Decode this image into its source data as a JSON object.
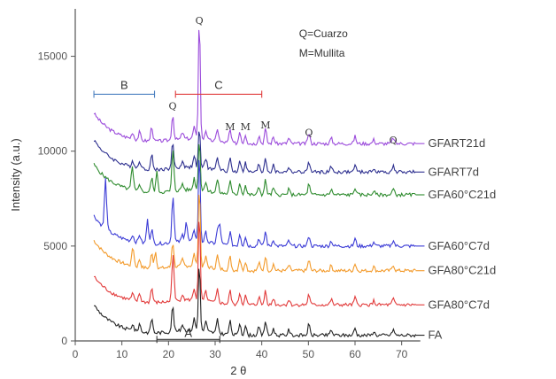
{
  "chart_data": {
    "type": "line",
    "xlabel": "2 θ",
    "ylabel": "Intensity (a.u.)",
    "xlim": [
      0,
      75
    ],
    "ylim": [
      0,
      17500
    ],
    "xticks": [
      0,
      10,
      20,
      30,
      40,
      50,
      60,
      70
    ],
    "yticks": [
      0,
      5000,
      10000,
      15000
    ],
    "grid": false,
    "legend_position": "right (labels at line ends)",
    "notes": [
      "Q=Cuarzo",
      "M=Mullita"
    ],
    "ranges": [
      {
        "label": "B",
        "start": 4,
        "end": 17,
        "color": "#4a7fc0"
      },
      {
        "label": "C",
        "start": 21.5,
        "end": 40,
        "color": "#e03b3b"
      },
      {
        "label": "A",
        "start": 17.5,
        "end": 31,
        "color": "#333333"
      }
    ],
    "peak_labels": [
      {
        "label": "Q",
        "x": 26.6,
        "y": 16700
      },
      {
        "label": "Q",
        "x": 20.9,
        "y": 12200
      },
      {
        "label": "M",
        "x": 33.2,
        "y": 11100
      },
      {
        "label": "M",
        "x": 36.5,
        "y": 11100
      },
      {
        "label": "M",
        "x": 40.8,
        "y": 11200
      },
      {
        "label": "Q",
        "x": 50.1,
        "y": 10800
      },
      {
        "label": "Q",
        "x": 68.2,
        "y": 10400
      }
    ],
    "series": [
      {
        "name": "GFART21d",
        "color": "#9b4bdb",
        "base": 10400,
        "start": 12000,
        "peak": 17000
      },
      {
        "name": "GFART7d",
        "color": "#2d2f8f",
        "base": 8900,
        "start": 10600,
        "peak": 11000
      },
      {
        "name": "GFA60°C21d",
        "color": "#2e8b2e",
        "base": 7700,
        "start": 9300,
        "peak": 10500
      },
      {
        "name": "GFA60°C7d",
        "color": "#3b3bd6",
        "base": 5000,
        "start": 6600,
        "peak": 9800
      },
      {
        "name": "GFA80°C21d",
        "color": "#f39a2a",
        "base": 3700,
        "start": 5300,
        "peak": 8000
      },
      {
        "name": "GFA80°C7d",
        "color": "#e23a3a",
        "base": 1900,
        "start": 3400,
        "peak": 6500
      },
      {
        "name": "FA",
        "color": "#222222",
        "base": 300,
        "start": 1900,
        "peak": 4000
      }
    ]
  }
}
